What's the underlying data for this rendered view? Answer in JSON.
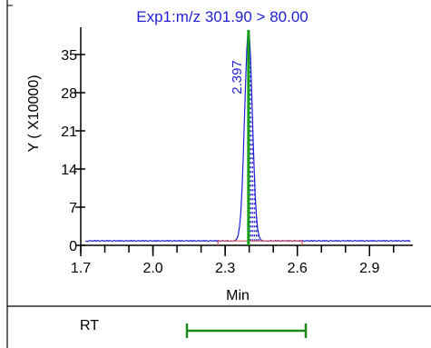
{
  "chart_data": {
    "type": "line",
    "title": "Exp1:m/z 301.90 > 80.00",
    "xlabel": "Min",
    "ylabel": "Y ( X10000)",
    "x_ticks": [
      "1.7",
      "2.0",
      "2.3",
      "2.6",
      "2.9"
    ],
    "y_ticks": [
      "0",
      "7",
      "14",
      "21",
      "28",
      "35"
    ],
    "xlim": [
      1.7,
      3.08
    ],
    "ylim": [
      0,
      40
    ],
    "peak_label": "2.397",
    "peak": {
      "rt": 2.397,
      "apex_y": 39.5,
      "start": 2.36,
      "end": 2.445
    },
    "baseline_y": 0.8,
    "integration_window": [
      2.27,
      2.62
    ],
    "colors": {
      "trace": "#1f1fd6",
      "rt_marker": "#16a016",
      "integration": "#e05050",
      "fill_dots": "#1f1fd6",
      "title": "#1f1fd6"
    }
  },
  "rt_row": {
    "label": "RT",
    "bar_color": "#1a8a1a"
  }
}
